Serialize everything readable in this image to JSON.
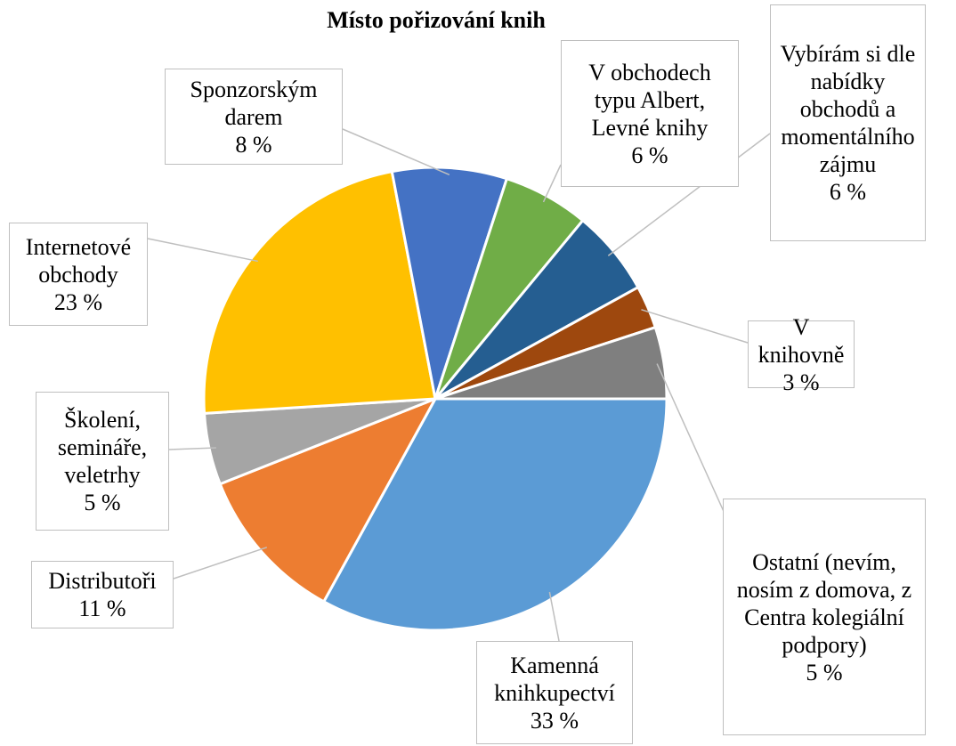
{
  "chart_data": {
    "type": "pie",
    "title": "Místo pořizování knih",
    "categories": [
      "Kamenná knihkupectví",
      "Distributoři",
      "Školení, semináře, veletrhy",
      "Internetové obchody",
      "Sponzorským darem",
      "V obchodech typu Albert, Levné knihy",
      "Vybírám si dle nabídky obchodů a momentálního zájmu",
      "V knihovně",
      "Ostatní (nevím, nosím z domova, z Centra kolegiální podpory)"
    ],
    "values": [
      33,
      11,
      5,
      23,
      8,
      6,
      6,
      3,
      5
    ],
    "value_labels": [
      "33 %",
      "11 %",
      "5 %",
      "23 %",
      "8 %",
      "6 %",
      "6 %",
      "3 %",
      "5 %"
    ],
    "colors": [
      "#5b9bd5",
      "#ed7d31",
      "#a5a5a5",
      "#ffc000",
      "#4472c4",
      "#70ad47",
      "#255e91",
      "#9e480e",
      "#7f7f7f"
    ]
  }
}
